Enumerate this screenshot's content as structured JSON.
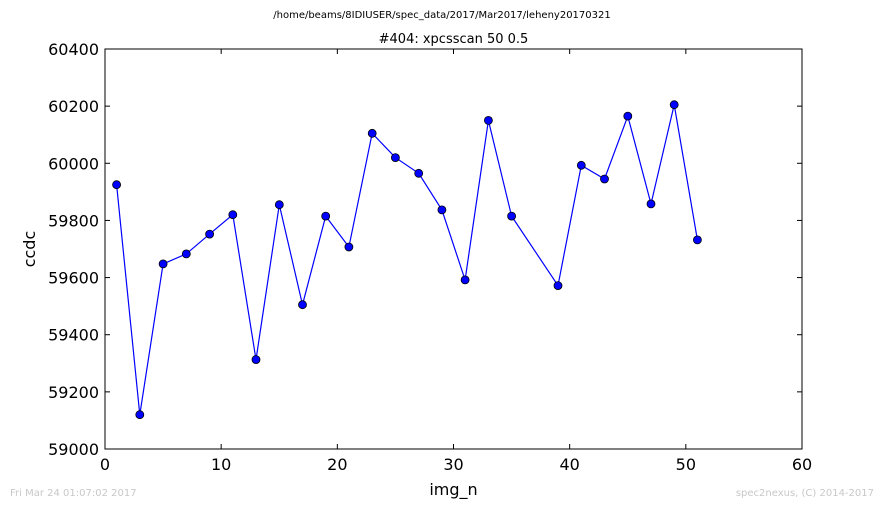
{
  "figure": {
    "path_title": "/home/beams/8IDIUSER/spec_data/2017/Mar2017/leheny20170321",
    "timestamp": "Fri Mar 24 01:07:02 2017",
    "credit": "spec2nexus, (C) 2014-2017"
  },
  "chart_data": {
    "type": "line",
    "title": "#404: xpcsscan 50 0.5",
    "xlabel": "img_n",
    "ylabel": "ccdc",
    "xlim": [
      0,
      60
    ],
    "ylim": [
      59000,
      60400
    ],
    "xticks": [
      0,
      10,
      20,
      30,
      40,
      50,
      60
    ],
    "yticks": [
      59000,
      59200,
      59400,
      59600,
      59800,
      60000,
      60200,
      60400
    ],
    "grid": false,
    "legend": "none",
    "series": [
      {
        "color": "#0000ff",
        "marker": "circle",
        "x": [
          1,
          3,
          5,
          7,
          9,
          11,
          13,
          15,
          17,
          19,
          21,
          23,
          25,
          27,
          29,
          31,
          33,
          35,
          39,
          41,
          43,
          45,
          47,
          49,
          51
        ],
        "y": [
          59925,
          59120,
          59648,
          59683,
          59752,
          59820,
          59313,
          59855,
          59505,
          59815,
          59707,
          60105,
          60020,
          59965,
          59837,
          59592,
          60150,
          59815,
          59572,
          59993,
          59945,
          60165,
          59858,
          60205,
          59732
        ]
      }
    ]
  }
}
